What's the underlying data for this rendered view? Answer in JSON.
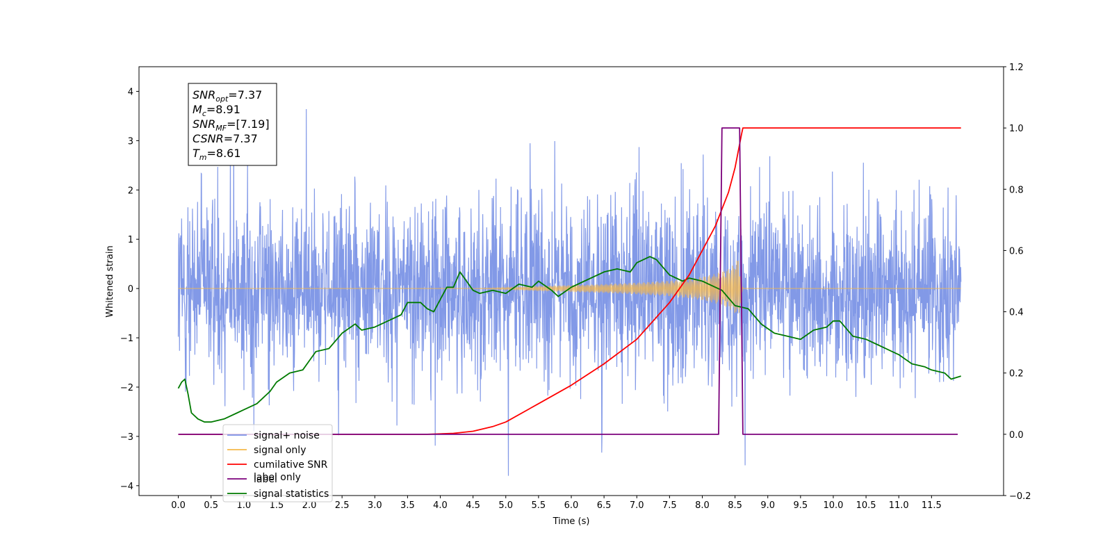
{
  "chart_data": {
    "type": "line",
    "xlabel": "Time (s)",
    "ylabel": "Whitened strain",
    "xlim": [
      -0.6,
      12.6
    ],
    "ylim": [
      -4.2,
      4.5
    ],
    "y2lim": [
      -0.2,
      1.2
    ],
    "x_ticks": [
      "0.0",
      "0.5",
      "1.0",
      "1.5",
      "2.0",
      "2.5",
      "3.0",
      "3.5",
      "4.0",
      "4.5",
      "5.0",
      "5.5",
      "6.0",
      "6.5",
      "7.0",
      "7.5",
      "8.0",
      "8.5",
      "9.0",
      "9.5",
      "10.0",
      "10.5",
      "11.0",
      "11.5"
    ],
    "y_ticks": [
      4,
      3,
      2,
      1,
      0,
      -1,
      -2,
      -3,
      -4
    ],
    "y2_ticks": [
      1.2,
      1.0,
      0.8,
      0.6,
      0.4,
      0.2,
      0.0,
      -0.2
    ],
    "annotation": {
      "lines": [
        {
          "sym": "SNR",
          "sub": "opt",
          "val": "=7.37"
        },
        {
          "sym": "M",
          "sub": "c",
          "val": "=8.91"
        },
        {
          "sym": "SNR",
          "sub": "MF",
          "val": "=[7.19]"
        },
        {
          "sym": "CSNR",
          "sub": "",
          "val": "=7.37"
        },
        {
          "sym": "T",
          "sub": "m",
          "val": "=8.61"
        }
      ]
    },
    "legend": {
      "placement": "lower-left",
      "entries": [
        {
          "label": "signal+ noise",
          "color": "#7b93e6"
        },
        {
          "label": "signal only",
          "color": "#f5b84a"
        },
        {
          "label": "cumilative SNR",
          "color": "#ff0000"
        },
        {
          "label": "label",
          "color": "#7b007b"
        },
        {
          "label": "signal statistics",
          "color": "#007a00"
        }
      ],
      "hidden_text": "label only"
    },
    "series": [
      {
        "name": "signal+ noise",
        "axis": "left",
        "color": "#7b93e6",
        "note": "dense noise band, approximately uniform",
        "x_range": [
          0.0,
          11.95
        ],
        "band": [
          -2.2,
          2.1
        ],
        "extremes": [
          -3.8,
          4.1
        ]
      },
      {
        "name": "signal only",
        "axis": "left",
        "color": "#f5b84a",
        "envelope": {
          "x": [
            0.0,
            4.5,
            5.0,
            5.5,
            6.0,
            6.5,
            7.0,
            7.5,
            7.8,
            8.0,
            8.2,
            8.4,
            8.5,
            8.55,
            8.6,
            8.62,
            11.95
          ],
          "amp": [
            0.0,
            0.0,
            0.02,
            0.05,
            0.07,
            0.09,
            0.12,
            0.16,
            0.2,
            0.24,
            0.3,
            0.4,
            0.5,
            0.62,
            0.15,
            0.0,
            0.0
          ]
        }
      },
      {
        "name": "cumilative SNR",
        "axis": "right",
        "color": "#ff0000",
        "x": [
          0.0,
          3.8,
          4.2,
          4.5,
          4.8,
          5.0,
          5.5,
          6.0,
          6.5,
          7.0,
          7.5,
          7.8,
          8.0,
          8.2,
          8.4,
          8.5,
          8.6,
          8.62,
          11.95
        ],
        "values": [
          0.0,
          0.0,
          0.003,
          0.01,
          0.025,
          0.04,
          0.1,
          0.16,
          0.23,
          0.31,
          0.43,
          0.52,
          0.6,
          0.68,
          0.79,
          0.87,
          0.98,
          1.0,
          1.0
        ]
      },
      {
        "name": "label",
        "axis": "right",
        "color": "#7b007b",
        "x": [
          0.0,
          8.25,
          8.3,
          8.57,
          8.62,
          11.9
        ],
        "values": [
          0.0,
          0.0,
          1.0,
          1.0,
          0.0,
          0.0
        ]
      },
      {
        "name": "signal statistics",
        "axis": "right",
        "color": "#007a00",
        "x": [
          0.0,
          0.05,
          0.1,
          0.15,
          0.2,
          0.3,
          0.4,
          0.5,
          0.7,
          0.9,
          1.0,
          1.2,
          1.4,
          1.5,
          1.7,
          1.9,
          2.0,
          2.1,
          2.3,
          2.5,
          2.7,
          2.8,
          3.0,
          3.2,
          3.4,
          3.5,
          3.7,
          3.8,
          3.9,
          4.0,
          4.1,
          4.2,
          4.3,
          4.4,
          4.5,
          4.6,
          4.8,
          5.0,
          5.2,
          5.4,
          5.5,
          5.7,
          5.8,
          6.0,
          6.2,
          6.4,
          6.5,
          6.7,
          6.9,
          7.0,
          7.2,
          7.3,
          7.5,
          7.7,
          7.8,
          8.0,
          8.2,
          8.3,
          8.5,
          8.7,
          8.9,
          9.1,
          9.3,
          9.5,
          9.7,
          9.9,
          10.0,
          10.1,
          10.3,
          10.5,
          10.7,
          10.9,
          11.0,
          11.2,
          11.4,
          11.5,
          11.7,
          11.8,
          11.95
        ],
        "values": [
          0.15,
          0.17,
          0.18,
          0.13,
          0.07,
          0.05,
          0.04,
          0.04,
          0.05,
          0.07,
          0.08,
          0.1,
          0.14,
          0.17,
          0.2,
          0.21,
          0.24,
          0.27,
          0.28,
          0.33,
          0.36,
          0.34,
          0.35,
          0.37,
          0.39,
          0.43,
          0.43,
          0.41,
          0.4,
          0.44,
          0.48,
          0.48,
          0.53,
          0.5,
          0.47,
          0.46,
          0.47,
          0.46,
          0.49,
          0.48,
          0.5,
          0.47,
          0.45,
          0.48,
          0.5,
          0.52,
          0.53,
          0.54,
          0.53,
          0.56,
          0.58,
          0.57,
          0.52,
          0.5,
          0.51,
          0.5,
          0.48,
          0.47,
          0.42,
          0.41,
          0.36,
          0.33,
          0.32,
          0.31,
          0.34,
          0.35,
          0.37,
          0.37,
          0.32,
          0.31,
          0.29,
          0.27,
          0.26,
          0.23,
          0.22,
          0.21,
          0.2,
          0.18,
          0.19
        ]
      }
    ]
  }
}
